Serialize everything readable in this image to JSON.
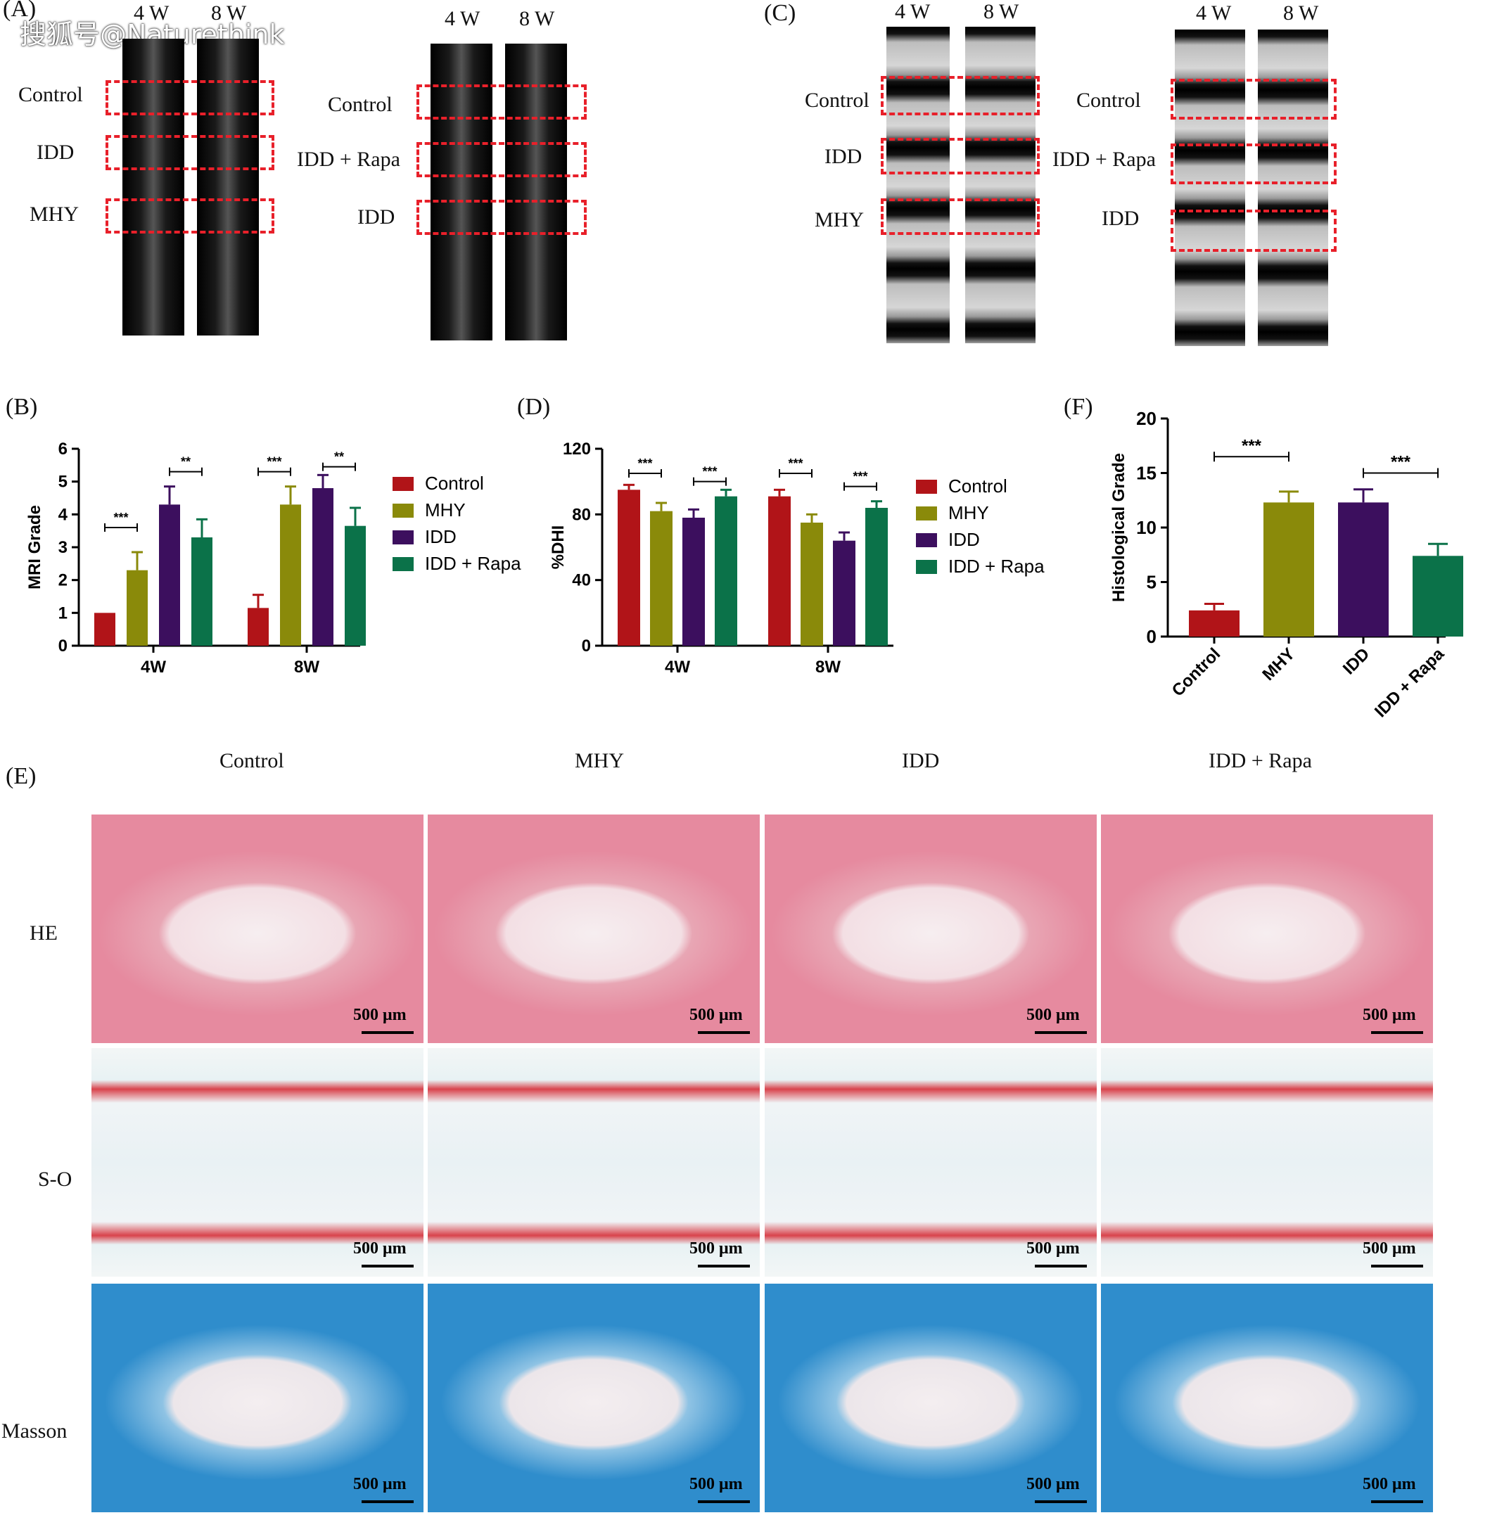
{
  "watermark": "搜狐号@Naturethink",
  "panel_letters": {
    "A": "(A)",
    "B": "(B)",
    "C": "(C)",
    "D": "(D)",
    "E": "(E)",
    "F": "(F)"
  },
  "panel_a": {
    "left": {
      "weeks": [
        "4 W",
        "8 W"
      ],
      "rows": [
        "Control",
        "IDD",
        "MHY"
      ]
    },
    "right": {
      "weeks": [
        "4 W",
        "8 W"
      ],
      "rows": [
        "Control",
        "IDD + Rapa",
        "IDD"
      ]
    }
  },
  "panel_c": {
    "left": {
      "weeks": [
        "4 W",
        "8 W"
      ],
      "rows": [
        "Control",
        "IDD",
        "MHY"
      ]
    },
    "right": {
      "weeks": [
        "4 W",
        "8 W"
      ],
      "rows": [
        "Control",
        "IDD + Rapa",
        "IDD"
      ]
    }
  },
  "panel_e": {
    "columns": [
      "Control",
      "MHY",
      "IDD",
      "IDD + Rapa"
    ],
    "rows": [
      "HE",
      "S-O",
      "Masson"
    ],
    "scale_label": "500 μm"
  },
  "colors": {
    "control": "#b11418",
    "mhy": "#8a8a0a",
    "idd": "#3c0f5e",
    "idd_rapa": "#0b7249",
    "dash": "#e8202a"
  },
  "chart_data": [
    {
      "id": "B",
      "type": "bar",
      "ylabel": "MRI Grade",
      "xlabel": "",
      "ylim": [
        0,
        6
      ],
      "yticks": [
        "0",
        "1",
        "2",
        "3",
        "4",
        "5",
        "6"
      ],
      "categories": [
        "4W",
        "8W"
      ],
      "series": [
        {
          "name": "Control",
          "values": [
            1.0,
            1.15
          ],
          "errors": [
            0.0,
            0.4
          ]
        },
        {
          "name": "MHY",
          "values": [
            2.3,
            4.3
          ],
          "errors": [
            0.55,
            0.55
          ]
        },
        {
          "name": "IDD",
          "values": [
            4.3,
            4.8
          ],
          "errors": [
            0.55,
            0.4
          ]
        },
        {
          "name": "IDD + Rapa",
          "values": [
            3.3,
            3.65
          ],
          "errors": [
            0.55,
            0.55
          ]
        }
      ],
      "significance": [
        {
          "label": "***",
          "category": 0,
          "from": 0,
          "to": 1,
          "y": 3.6
        },
        {
          "label": "**",
          "category": 0,
          "from": 2,
          "to": 3,
          "y": 5.3
        },
        {
          "label": "***",
          "category": 1,
          "from": 0,
          "to": 1,
          "y": 5.3
        },
        {
          "label": "**",
          "category": 1,
          "from": 2,
          "to": 3,
          "y": 5.45
        }
      ],
      "legend_position": "right"
    },
    {
      "id": "D",
      "type": "bar",
      "ylabel": "%DHI",
      "xlabel": "",
      "ylim": [
        0,
        120
      ],
      "yticks": [
        "0",
        "40",
        "80",
        "120"
      ],
      "categories": [
        "4W",
        "8W"
      ],
      "series": [
        {
          "name": "Control",
          "values": [
            95,
            91
          ],
          "errors": [
            3,
            4
          ]
        },
        {
          "name": "MHY",
          "values": [
            82,
            75
          ],
          "errors": [
            5,
            5
          ]
        },
        {
          "name": "IDD",
          "values": [
            78,
            64
          ],
          "errors": [
            5,
            5
          ]
        },
        {
          "name": "IDD + Rapa",
          "values": [
            91,
            84
          ],
          "errors": [
            4,
            4
          ]
        }
      ],
      "significance": [
        {
          "label": "***",
          "category": 0,
          "from": 0,
          "to": 1,
          "y": 105
        },
        {
          "label": "***",
          "category": 0,
          "from": 2,
          "to": 3,
          "y": 100
        },
        {
          "label": "***",
          "category": 1,
          "from": 0,
          "to": 1,
          "y": 105
        },
        {
          "label": "***",
          "category": 1,
          "from": 2,
          "to": 3,
          "y": 97
        }
      ],
      "legend_position": "right"
    },
    {
      "id": "F",
      "type": "bar",
      "ylabel": "Histological Grade",
      "xlabel": "",
      "ylim": [
        0,
        20
      ],
      "yticks": [
        "0",
        "5",
        "10",
        "15",
        "20"
      ],
      "categories": [
        "Control",
        "MHY",
        "IDD",
        "IDD + Rapa"
      ],
      "values": [
        2.4,
        12.3,
        12.3,
        7.4
      ],
      "errors": [
        0.6,
        1.0,
        1.2,
        1.1
      ],
      "significance": [
        {
          "label": "***",
          "from": 0,
          "to": 1,
          "y": 16.5
        },
        {
          "label": "***",
          "from": 2,
          "to": 3,
          "y": 15.0
        }
      ]
    }
  ]
}
